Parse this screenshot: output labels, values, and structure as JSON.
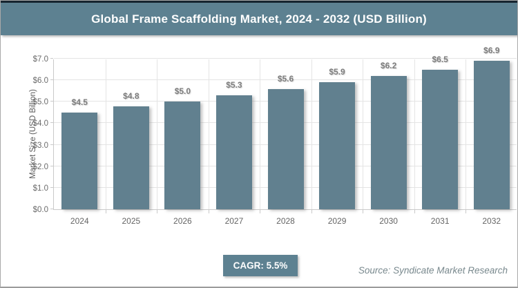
{
  "title": "Global Frame Scaffolding Market, 2024 - 2032 (USD Billion)",
  "chart_data": {
    "type": "bar",
    "title": "Global Frame Scaffolding Market, 2024 - 2032 (USD Billion)",
    "categories": [
      "2024",
      "2025",
      "2026",
      "2027",
      "2028",
      "2029",
      "2030",
      "2031",
      "2032"
    ],
    "values": [
      4.5,
      4.8,
      5.0,
      5.3,
      5.6,
      5.9,
      6.2,
      6.5,
      6.9
    ],
    "value_labels": [
      "$4.5",
      "$4.8",
      "$5.0",
      "$5.3",
      "$5.6",
      "$5.9",
      "$6.2",
      "$6.5",
      "$6.9"
    ],
    "xlabel": "",
    "ylabel": "Market Size (USD Billion)",
    "ylim": [
      0,
      7
    ],
    "yticks": [
      "$0.0",
      "$1.0",
      "$2.0",
      "$3.0",
      "$4.0",
      "$5.0",
      "$6.0",
      "$7.0"
    ],
    "grid": true,
    "legend": false,
    "bar_color": "#61808f"
  },
  "footer": {
    "cagr_label": "CAGR: 5.5%",
    "source": "Source: Syndicate Market Research"
  },
  "colors": {
    "header_background": "#5d8191",
    "bar": "#61808f",
    "top_strip": "#16242f",
    "gridline": "#e4e4e4",
    "axis_line": "#c9c9c9",
    "tick_label": "#6b6b6b",
    "data_label": "#7d7d7d",
    "source_text": "#78888d"
  }
}
